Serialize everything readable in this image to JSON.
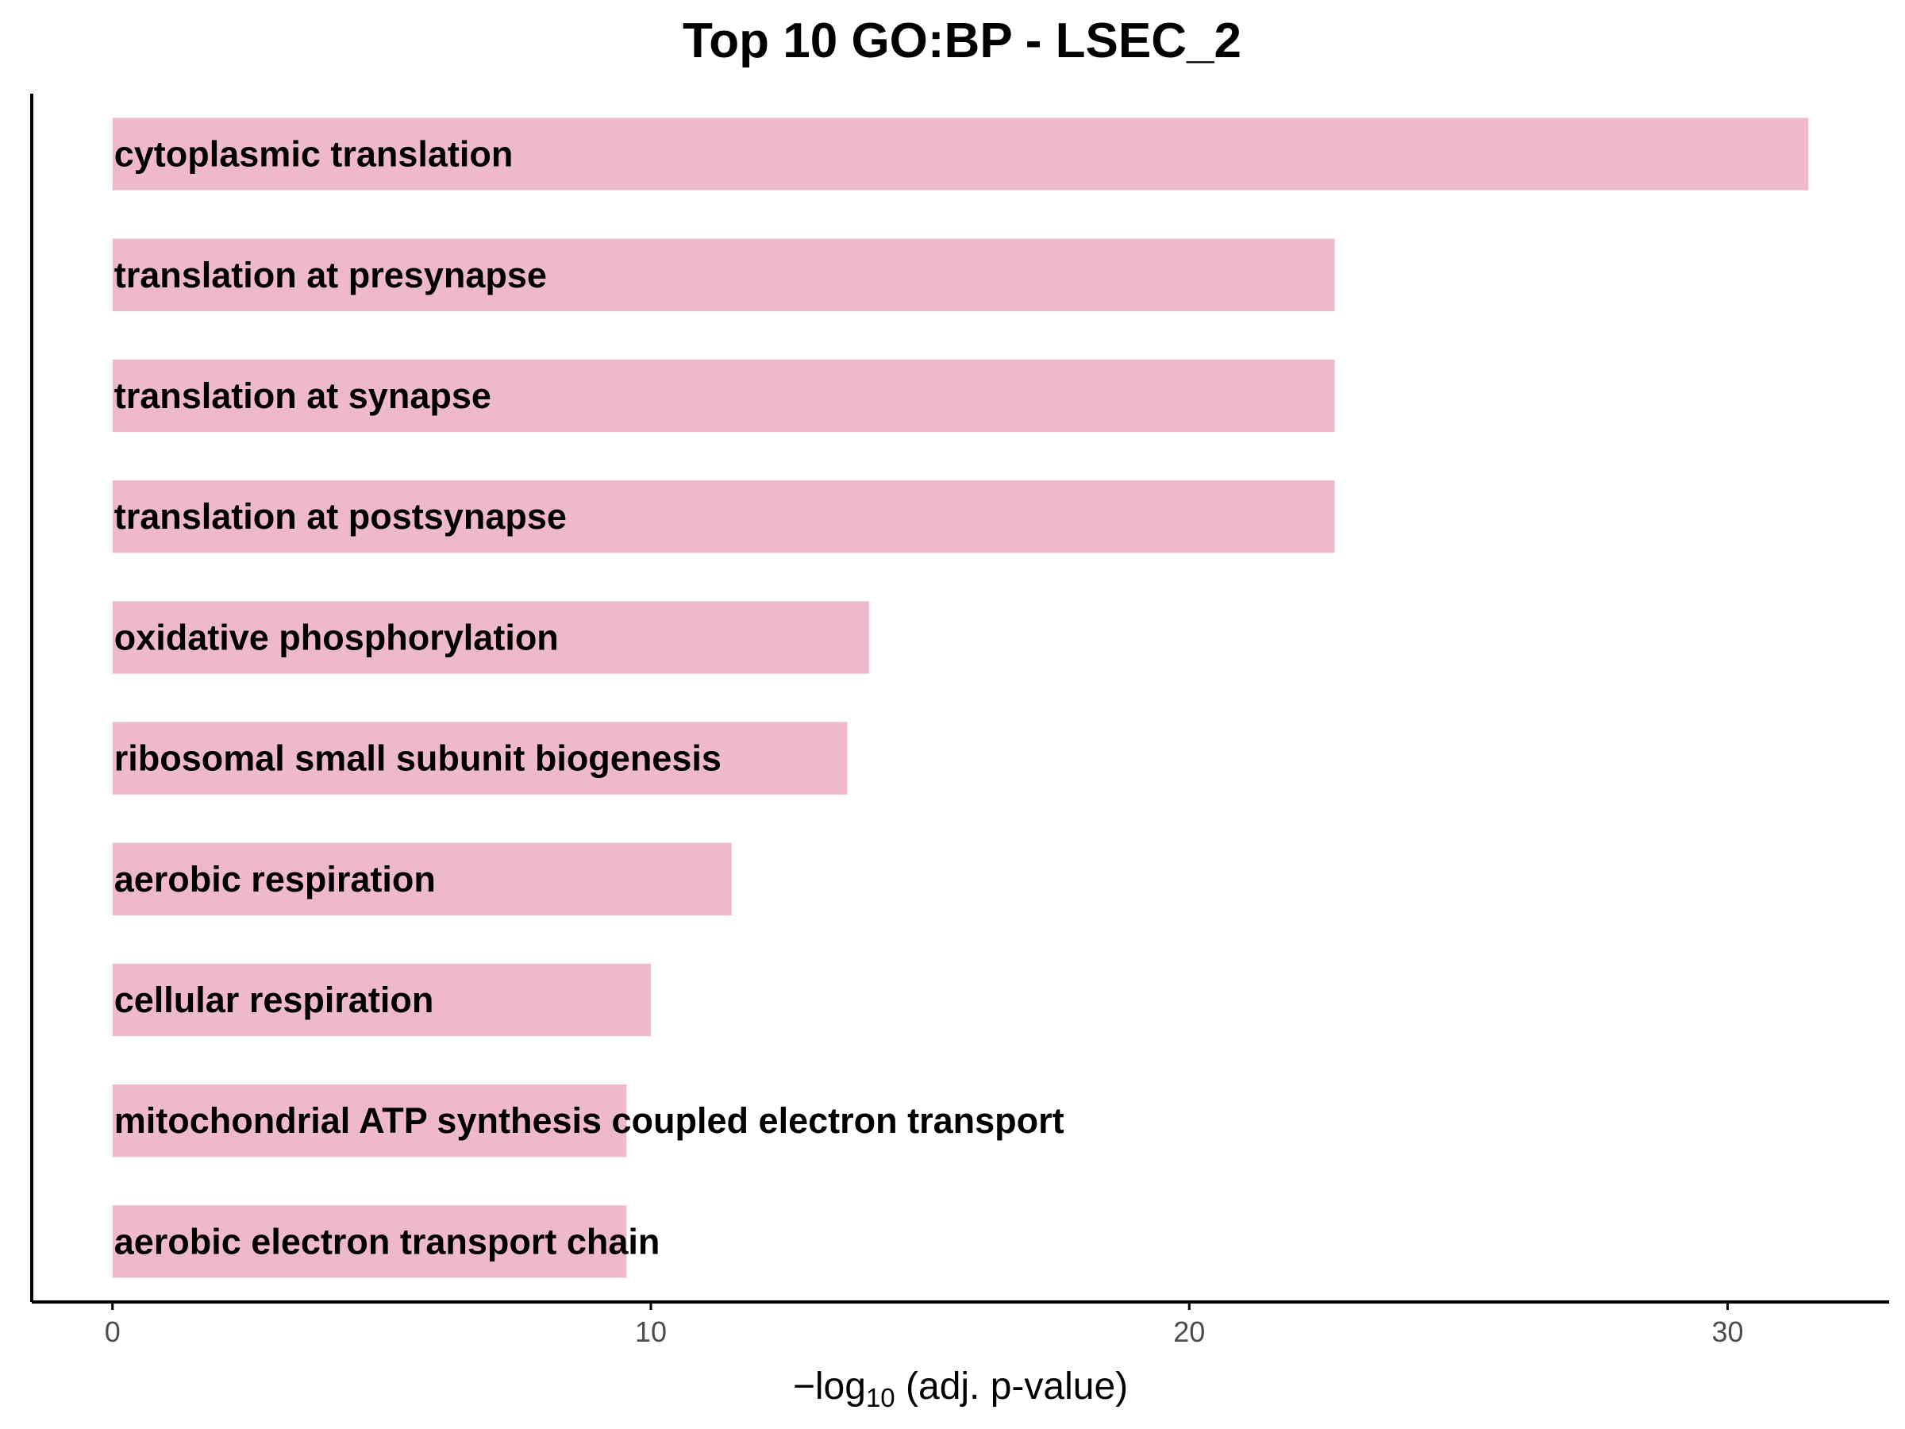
{
  "chart_data": {
    "type": "bar",
    "orientation": "horizontal",
    "title": "Top 10 GO:BP - LSEC_2",
    "xlabel": "−log10 (adj. p-value)",
    "xlabel_parts": {
      "prefix": "−log",
      "subscript": "10",
      "suffix": " (adj. p-value)"
    },
    "ylabel": "",
    "xlim": [
      -1.5,
      33
    ],
    "xticks": [
      0,
      10,
      20,
      30
    ],
    "grid": false,
    "legend": "none",
    "bar_color": "#EDB9CB",
    "categories": [
      "cytoplasmic translation",
      "translation at presynapse",
      "translation at synapse",
      "translation at postsynapse",
      "oxidative phosphorylation",
      "ribosomal small subunit biogenesis",
      "aerobic respiration",
      "cellular respiration",
      "mitochondrial ATP synthesis coupled electron transport",
      "aerobic electron transport chain"
    ],
    "values": [
      31.5,
      22.7,
      22.7,
      22.7,
      14.05,
      13.65,
      11.5,
      10.0,
      9.55,
      9.55
    ]
  }
}
